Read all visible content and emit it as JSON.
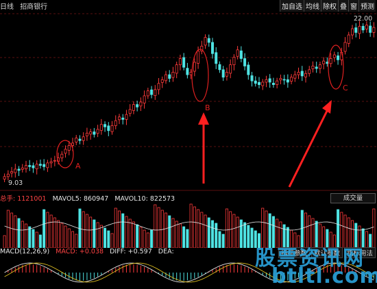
{
  "header": {
    "period": "日线",
    "stock": "招商银行",
    "buttons": [
      "加自选",
      "均线",
      "除权",
      "叠",
      "窗",
      "预测"
    ]
  },
  "annotations": {
    "high_label": "22.00",
    "low_label": "9.03",
    "markers": [
      "A",
      "B",
      "C"
    ]
  },
  "volume": {
    "total_label": "总手: 1121001",
    "mavol5": "MAVOL5: 860947",
    "mavol10": "MAVOL10: 822573",
    "selector": "成交量"
  },
  "macd": {
    "name": "MACD(12,26,9)",
    "macd": "MACD: +0.038",
    "diff": "DIFF: +0.597",
    "dea": "DEA: ",
    "buttons": [
      "指标参数",
      "默认参数",
      "指标用法"
    ]
  },
  "watermark": {
    "line1": "股票资讯网",
    "line2": "btltl.com"
  },
  "colors": {
    "up": "#ff3b3b",
    "down": "#4fe3e3",
    "marker": "#e02020",
    "watermark": "#2aa0d8"
  },
  "chart_data": {
    "type": "candlestick",
    "low_value": 9.03,
    "high_value": 22.0,
    "series": [
      {
        "name": "Price",
        "values": [
          9.4,
          9.6,
          9.8,
          10.0,
          9.9,
          10.1,
          10.3,
          10.2,
          10.1,
          10.4,
          10.3,
          10.2,
          10.5,
          10.6,
          10.7,
          10.9,
          11.2,
          11.6,
          11.9,
          12.1,
          12.5,
          12.3,
          12.6,
          12.9,
          13.0,
          12.8,
          13.2,
          13.6,
          13.4,
          13.1,
          13.5,
          13.9,
          14.2,
          14.0,
          14.4,
          14.8,
          15.2,
          15.0,
          15.4,
          15.9,
          16.3,
          16.0,
          16.4,
          16.9,
          17.2,
          17.6,
          17.3,
          17.8,
          18.4,
          18.9,
          18.2,
          17.6,
          17.8,
          18.6,
          19.5,
          19.9,
          20.6,
          20.2,
          19.3,
          18.5,
          18.0,
          17.4,
          17.8,
          18.4,
          19.0,
          19.6,
          18.9,
          18.3,
          17.6,
          17.1,
          16.9,
          16.8,
          17.0,
          17.2,
          17.0,
          16.8,
          17.1,
          17.3,
          17.2,
          17.0,
          17.4,
          17.6,
          17.8,
          17.5,
          17.7,
          18.0,
          18.3,
          18.1,
          18.4,
          18.7,
          18.5,
          18.9,
          19.2,
          18.8,
          19.4,
          20.2,
          20.8,
          21.3,
          21.0,
          21.5,
          21.2,
          21.6,
          21.0,
          21.4
        ]
      }
    ]
  }
}
